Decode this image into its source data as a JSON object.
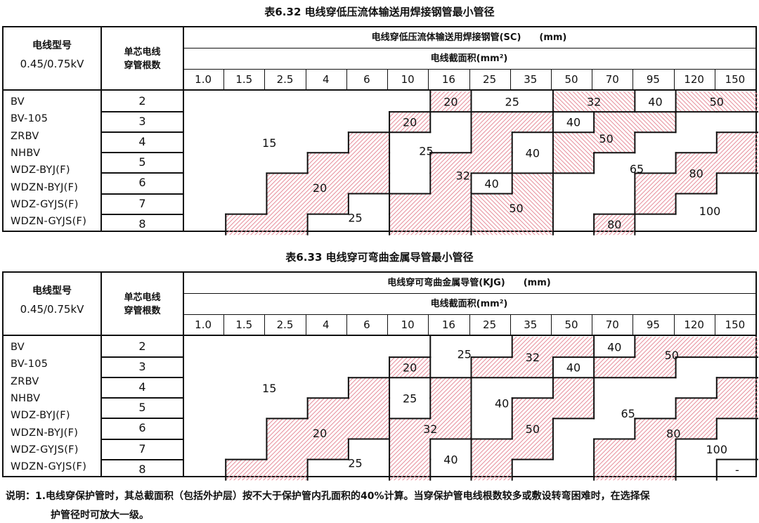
{
  "hatch_color": "#e8939f",
  "tables": [
    {
      "title": "表6.32 电线穿低压流体输送用焊接钢管最小管径",
      "col_header_type": "电线型号",
      "col_header_voltage": "0.45/0.75kV",
      "col_header_count": "单芯电线穿管根数",
      "pipe_header": "电线穿低压流体输送用焊接钢管(SC)　　(mm)",
      "section_header": "电线截面积(mm²)",
      "sections": [
        "1.0",
        "1.5",
        "2.5",
        "4",
        "6",
        "10",
        "16",
        "25",
        "35",
        "50",
        "70",
        "95",
        "120",
        "150"
      ],
      "wire_counts": [
        "2",
        "3",
        "4",
        "5",
        "6",
        "7",
        "8"
      ],
      "wire_types": [
        "BV",
        "BV-105",
        "ZRBV",
        "NHBV",
        "WDZ-BYJ(F)",
        "WDZN-BYJ(F)",
        "WDZ-GYJS(F)",
        "WDZN-GYJS(F)"
      ],
      "regions": {
        "A": {
          "value": "15",
          "hatch": "none"
        },
        "B": {
          "value": "20",
          "hatch": "/"
        },
        "C": {
          "value": "25",
          "hatch": "none"
        },
        "D": {
          "value": "20",
          "hatch": "/"
        },
        "E": {
          "value": "25",
          "hatch": "none"
        },
        "F": {
          "value": "32",
          "hatch": "/"
        },
        "G": {
          "value": "40",
          "hatch": "none"
        },
        "H": {
          "value": "40",
          "hatch": "none"
        },
        "I": {
          "value": "50",
          "hatch": "\\"
        },
        "J": {
          "value": "20",
          "hatch": "/"
        },
        "K": {
          "value": "25",
          "hatch": "none"
        },
        "L": {
          "value": "32",
          "hatch": "\\"
        },
        "M": {
          "value": "40",
          "hatch": "none"
        },
        "N": {
          "value": "50",
          "hatch": "\\"
        },
        "O": {
          "value": "40",
          "hatch": "none"
        },
        "P": {
          "value": "50",
          "hatch": "\\"
        },
        "Q": {
          "value": "65",
          "hatch": "none"
        },
        "R": {
          "value": "80",
          "hatch": "/"
        },
        "S": {
          "value": "100",
          "hatch": "none"
        },
        "T": {
          "value": "80",
          "hatch": "/"
        }
      },
      "grid": [
        "AAAAAAJKKLLMNN",
        "AAAAADEFFOPPQQ",
        "AAAABEEFGPPQQR",
        "AAABBEFFGPQQRR",
        "AABBBEFHIQQRRS",
        "AABBCFFIIQQRSS",
        "ABBCCFFIIQTSSS"
      ]
    },
    {
      "title": "表6.33 电线穿可弯曲金属导管最小管径",
      "col_header_type": "电线型号",
      "col_header_voltage": "0.45/0.75kV",
      "col_header_count": "单芯电线穿管根数",
      "pipe_header": "电线穿可弯曲金属导管(KJG)　　(mm)",
      "section_header": "电线截面积(mm²)",
      "sections": [
        "1.0",
        "1.5",
        "2.5",
        "4",
        "6",
        "10",
        "16",
        "25",
        "35",
        "50",
        "70",
        "95",
        "120",
        "150"
      ],
      "wire_counts": [
        "2",
        "3",
        "4",
        "5",
        "6",
        "7",
        "8"
      ],
      "wire_types": [
        "BV",
        "BV-105",
        "ZRBV",
        "NHBV",
        "WDZ-BYJ(F)",
        "WDZN-BYJ(F)",
        "WDZ-GYJS(F)",
        "WDZN-GYJS(F)"
      ],
      "regions": {
        "A": {
          "value": "15",
          "hatch": "none"
        },
        "B": {
          "value": "20",
          "hatch": "/"
        },
        "C": {
          "value": "25",
          "hatch": "none"
        },
        "D": {
          "value": "20",
          "hatch": "/"
        },
        "E": {
          "value": "25",
          "hatch": "none"
        },
        "F": {
          "value": "32",
          "hatch": "/"
        },
        "G": {
          "value": "25",
          "hatch": "none"
        },
        "H": {
          "value": "32",
          "hatch": "/"
        },
        "I": {
          "value": "40",
          "hatch": "none"
        },
        "J": {
          "value": "40",
          "hatch": "none"
        },
        "K": {
          "value": "50",
          "hatch": "/"
        },
        "L": {
          "value": "40",
          "hatch": "none"
        },
        "M": {
          "value": "40",
          "hatch": "none"
        },
        "N": {
          "value": "50",
          "hatch": "/"
        },
        "O": {
          "value": "65",
          "hatch": "none"
        },
        "P": {
          "value": "80",
          "hatch": "/"
        },
        "Q": {
          "value": "100",
          "hatch": "none"
        },
        "R": {
          "value": "-",
          "hatch": "none"
        }
      },
      "grid": [
        "AAAAAAEEFFMNNN",
        "AAAAADEFFLNNOO",
        "AAAABGHJJKOOOP",
        "AAABBGHJKKOOPP",
        "AABBBHHJKOOPPQ",
        "AABBCHIKKOPPQQ",
        "ABBCCHIKOOPPQR"
      ]
    }
  ],
  "note_line1": "说明：1.电线穿保护管时，其总截面积（包括外护层）按不大于保护管内孔面积的40%计算。当穿保护管电线根数较多或敷设转弯困难时，在选择保",
  "note_line2": "护管径时可放大一级。"
}
